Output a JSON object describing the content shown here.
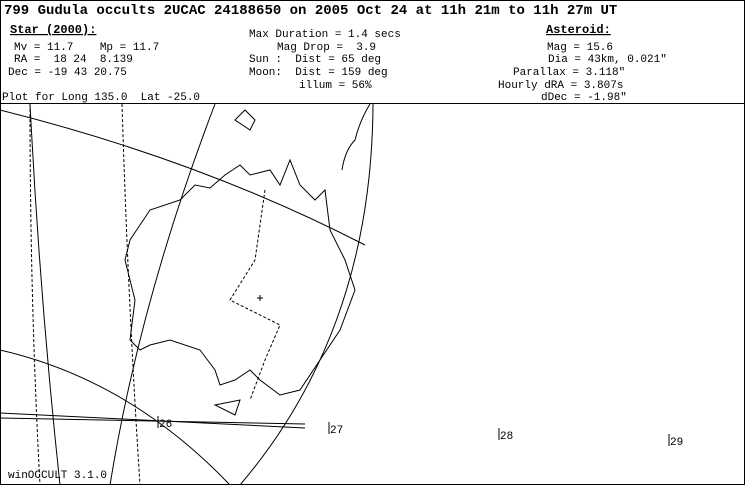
{
  "header": {
    "title": "799 Gudula occults 2UCAC 24188650 on 2005 Oct 24 at 11h 21m to 11h 27m UT",
    "star": {
      "heading": "Star (2000):",
      "lines": [
        "Mv = 11.7    Mp = 11.7",
        "RA =  18 24  8.139",
        "Dec = -19 43 20.75"
      ]
    },
    "event": {
      "lines": [
        "Max Duration = 1.4 secs",
        "Mag Drop =  3.9",
        "Sun :  Dist = 65 deg",
        "Moon:  Dist = 159 deg",
        "illum = 56%"
      ]
    },
    "asteroid": {
      "heading": "Asteroid:",
      "lines": [
        "Mag = 15.6",
        "Dia = 43km, 0.021\"",
        "Parallax = 3.118\"",
        "Hourly dRA = 3.807s",
        "dDec = -1.98\""
      ]
    },
    "plot_for": "Plot for Long 135.0  Lat -25.0"
  },
  "map": {
    "time_labels": [
      "26",
      "27",
      "28",
      "29"
    ]
  },
  "footer": {
    "software": "winOCCULT 3.1.0"
  }
}
